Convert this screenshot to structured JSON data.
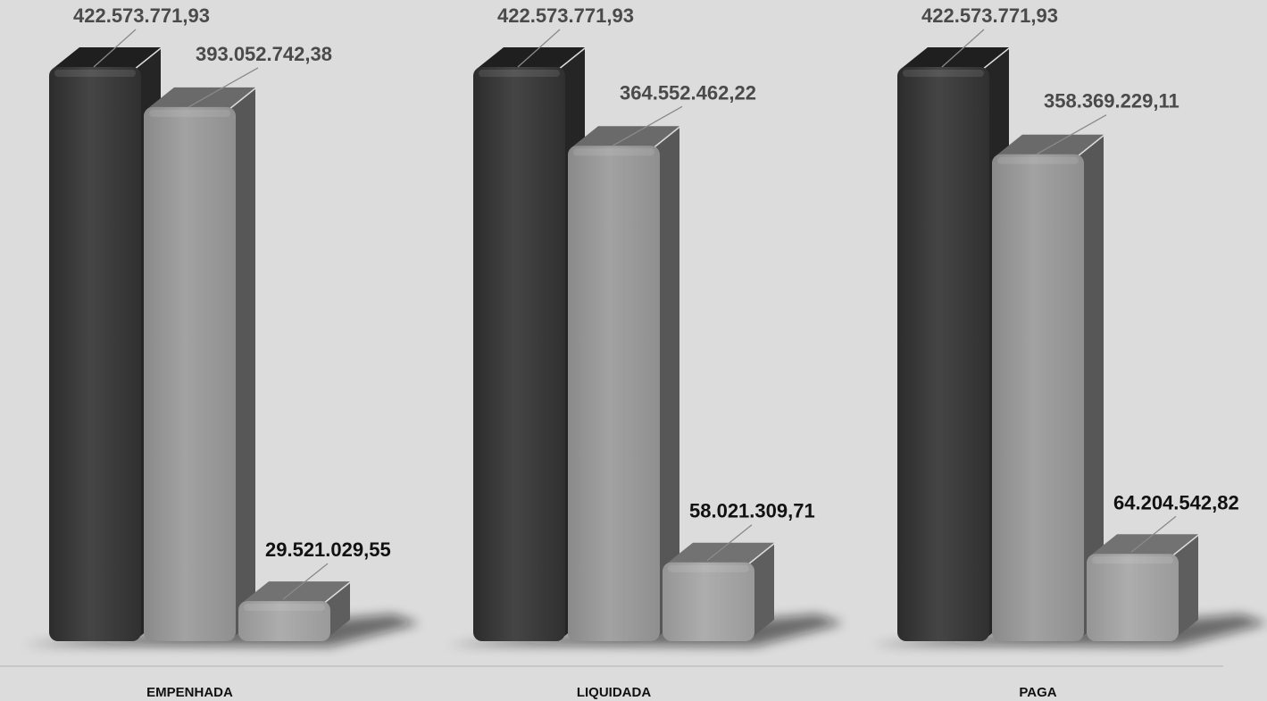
{
  "chart_data": {
    "type": "bar",
    "categories": [
      "EMPENHADA",
      "LIQUIDADA",
      "PAGA"
    ],
    "series": [
      {
        "values": [
          422573771.93,
          422573771.93,
          422573771.93
        ],
        "labels": [
          "422.573.771,93",
          "422.573.771,93",
          "422.573.771,93"
        ],
        "color": "#3a3a3a"
      },
      {
        "values": [
          393052742.38,
          364552462.22,
          358369229.11
        ],
        "labels": [
          "393.052.742,38",
          "364.552.462,22",
          "358.369.229,11"
        ],
        "color": "#9a9a9a"
      },
      {
        "values": [
          29521029.55,
          58021309.71,
          64204542.82
        ],
        "labels": [
          "29.521.029,55",
          "58.021.309,71",
          "64.204.542,82"
        ],
        "color": "#a6a6a6"
      }
    ],
    "ylim": [
      0,
      422573771.93
    ],
    "grid": false,
    "legend": "none"
  }
}
